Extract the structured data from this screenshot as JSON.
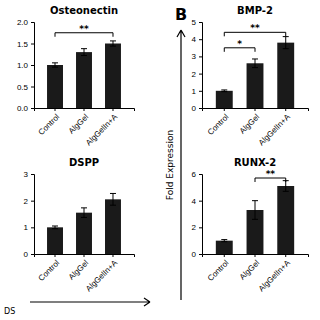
{
  "chart_data": [
    {
      "type": "bar",
      "title": "Osteonectin",
      "categories": [
        "Control",
        "AlgGel",
        "AlgGelIn+A"
      ],
      "values": [
        1.0,
        1.3,
        1.5
      ],
      "errors": [
        0.05,
        0.08,
        0.06
      ],
      "color": "#1a1a1a",
      "ylim": [
        0,
        2.0
      ],
      "yticks": [
        {
          "value": 0.0,
          "label": "0.0"
        },
        0.5,
        {
          "value": 1.0,
          "label": "1.0"
        },
        1.5,
        {
          "value": 2.0,
          "label": "2.0"
        }
      ],
      "grid": false,
      "significance": [
        {
          "from": "Control",
          "to": "AlgGelIn+A",
          "y": 1.75,
          "label": "**"
        }
      ]
    },
    {
      "type": "bar",
      "title": "DSPP",
      "categories": [
        "Control",
        "AlgGel",
        "AlgGelIn+A"
      ],
      "values": [
        1.0,
        1.55,
        2.05
      ],
      "errors": [
        0.05,
        0.18,
        0.22
      ],
      "color": "#1a1a1a",
      "ylim": [
        0,
        3.0
      ],
      "yticks": [
        0,
        1,
        2,
        3
      ],
      "grid": false,
      "significance": []
    },
    {
      "type": "bar",
      "title": "BMP-2",
      "categories": [
        "Control",
        "AlgGel",
        "AlgGelIn+A"
      ],
      "values": [
        1.0,
        2.6,
        3.8
      ],
      "errors": [
        0.05,
        0.25,
        0.35
      ],
      "color": "#1a1a1a",
      "ylim": [
        0,
        5.0
      ],
      "yticks": [
        0,
        1,
        2,
        3,
        4,
        5
      ],
      "grid": false,
      "significance": [
        {
          "from": "Control",
          "to": "AlgGel",
          "y": 3.5,
          "label": "*"
        },
        {
          "from": "Control",
          "to": "AlgGelIn+A",
          "y": 4.4,
          "label": "**"
        }
      ]
    },
    {
      "type": "bar",
      "title": "RUNX-2",
      "categories": [
        "Control",
        "AlgGel",
        "AlgGelIn+A"
      ],
      "values": [
        1.0,
        3.3,
        5.1
      ],
      "errors": [
        0.08,
        0.7,
        0.4
      ],
      "color": "#1a1a1a",
      "ylim": [
        0,
        6.0
      ],
      "yticks": [
        0,
        2,
        4,
        6
      ],
      "grid": false,
      "significance": [
        {
          "from": "AlgGel",
          "to": "AlgGelIn+A",
          "y": 5.7,
          "label": "**"
        }
      ]
    }
  ],
  "annotations": [
    {
      "text": "Fold Expression"
    },
    {
      "text": "B"
    },
    {
      "text": "DS"
    }
  ]
}
